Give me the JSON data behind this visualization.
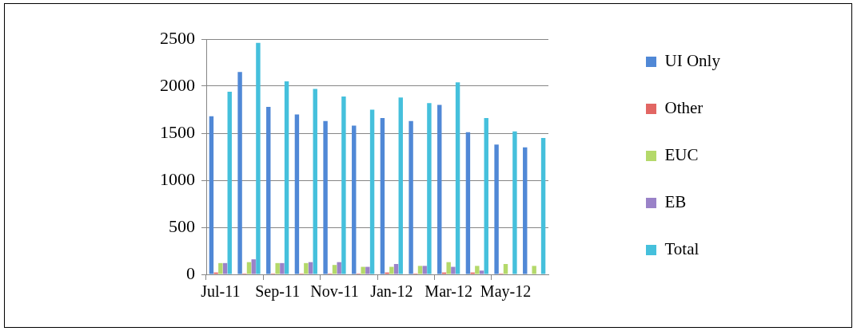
{
  "chart_data": {
    "type": "bar",
    "categories": [
      "Jul-11",
      null,
      "Sep-11",
      null,
      "Nov-11",
      null,
      "Jan-12",
      null,
      "Mar-12",
      null,
      "May-12",
      null
    ],
    "series": [
      {
        "name": "UI Only",
        "color": "#5088d6",
        "values": [
          1680,
          2150,
          1780,
          1700,
          1630,
          1580,
          1660,
          1630,
          1800,
          1510,
          1380,
          1350
        ]
      },
      {
        "name": "Other",
        "color": "#e26663",
        "values": [
          20,
          10,
          10,
          10,
          10,
          10,
          20,
          10,
          20,
          20,
          10,
          0
        ]
      },
      {
        "name": "EUC",
        "color": "#b4d96a",
        "values": [
          120,
          130,
          120,
          120,
          100,
          80,
          80,
          90,
          130,
          90,
          110,
          90
        ]
      },
      {
        "name": "EB",
        "color": "#9a82c8",
        "values": [
          120,
          160,
          120,
          130,
          130,
          80,
          110,
          90,
          80,
          40,
          0,
          0
        ]
      },
      {
        "name": "Total",
        "color": "#45c0dc",
        "values": [
          1940,
          2460,
          2050,
          1970,
          1890,
          1750,
          1880,
          1820,
          2040,
          1660,
          1520,
          1450
        ]
      }
    ],
    "ylim": [
      0,
      2500
    ],
    "yticks": [
      0,
      500,
      1000,
      1500,
      2000,
      2500
    ],
    "grid": "y",
    "legend": "right"
  }
}
